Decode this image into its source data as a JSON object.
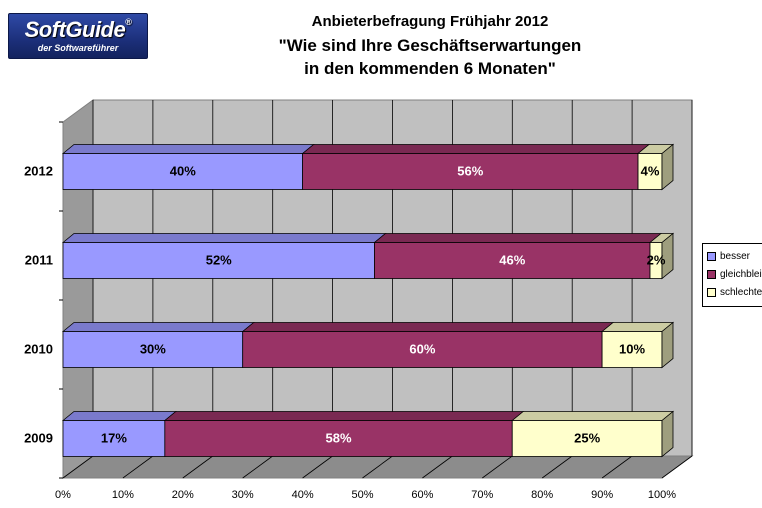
{
  "logo": {
    "name": "SoftGuide",
    "registered": "®",
    "tagline": "der Softwareführer"
  },
  "chart_data": {
    "type": "bar",
    "orientation": "horizontal",
    "stacked": "percent",
    "three_d": true,
    "title_lines": [
      "Anbieterbefragung Frühjahr 2012",
      "\"Wie sind Ihre Geschäftserwartungen",
      "in den kommenden 6 Monaten\""
    ],
    "categories": [
      "2012",
      "2011",
      "2010",
      "2009"
    ],
    "series": [
      {
        "name": "besser",
        "color": "#9999ff",
        "values": [
          40,
          52,
          30,
          17
        ]
      },
      {
        "name": "gleichbleibend",
        "color": "#993366",
        "values": [
          56,
          46,
          60,
          58
        ]
      },
      {
        "name": "schlechter",
        "color": "#ffffcc",
        "values": [
          4,
          2,
          10,
          25
        ]
      }
    ],
    "data_label_suffix": "%",
    "xlim": [
      0,
      100
    ],
    "x_ticks": [
      "0%",
      "10%",
      "20%",
      "30%",
      "40%",
      "50%",
      "60%",
      "70%",
      "80%",
      "90%",
      "100%"
    ],
    "grid": true,
    "legend_position": "right"
  }
}
